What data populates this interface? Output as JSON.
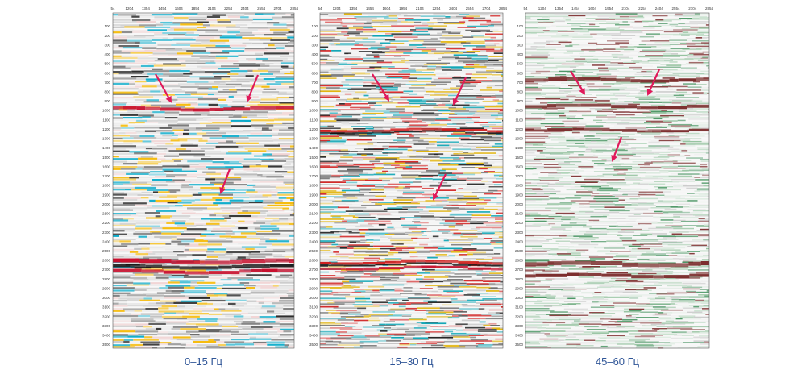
{
  "panels": [
    {
      "caption": "0–15 Гц",
      "x_ticks": [
        "54",
        "1204",
        "1354",
        "1454",
        "1604",
        "1854",
        "2104",
        "2254",
        "2404",
        "2554",
        "2704",
        "2854"
      ],
      "y_ticks": [
        "100",
        "200",
        "300",
        "400",
        "500",
        "600",
        "700",
        "800",
        "900",
        "1000",
        "1100",
        "1200",
        "1300",
        "1400",
        "1500",
        "1600",
        "1700",
        "1800",
        "1900",
        "2000",
        "2100",
        "2200",
        "2300",
        "2400",
        "2500",
        "2600",
        "2700",
        "2800",
        "2900",
        "3000",
        "3100",
        "3200",
        "3300",
        "3400",
        "3500"
      ]
    },
    {
      "caption": "15–30 Гц",
      "x_ticks": [
        "54",
        "1204",
        "1354",
        "1454",
        "1604",
        "1954",
        "2104",
        "2254",
        "2404",
        "2554",
        "2704",
        "2854"
      ],
      "y_ticks": [
        "100",
        "200",
        "300",
        "400",
        "500",
        "600",
        "700",
        "800",
        "900",
        "1000",
        "1100",
        "1200",
        "1300",
        "1400",
        "1500",
        "1600",
        "1700",
        "1800",
        "1900",
        "2000",
        "2100",
        "2200",
        "2300",
        "2400",
        "2500",
        "2600",
        "2700",
        "2800",
        "2900",
        "3000",
        "3100",
        "3200",
        "3300",
        "3400",
        "3500"
      ]
    },
    {
      "caption": "45–60 Гц",
      "x_ticks": [
        "54",
        "1204",
        "1354",
        "1454",
        "1604",
        "1954",
        "2104",
        "2254",
        "2404",
        "2554",
        "2704",
        "2854"
      ],
      "y_ticks": [
        "100",
        "200",
        "300",
        "400",
        "500",
        "600",
        "700",
        "800",
        "900",
        "1000",
        "1100",
        "1200",
        "1300",
        "1400",
        "1500",
        "1600",
        "1700",
        "1800",
        "1900",
        "2000",
        "2100",
        "2200",
        "2300",
        "2400",
        "2500",
        "2600",
        "2700",
        "2800",
        "2900",
        "3000",
        "3100",
        "3200",
        "3300",
        "3400",
        "3500"
      ]
    }
  ]
}
